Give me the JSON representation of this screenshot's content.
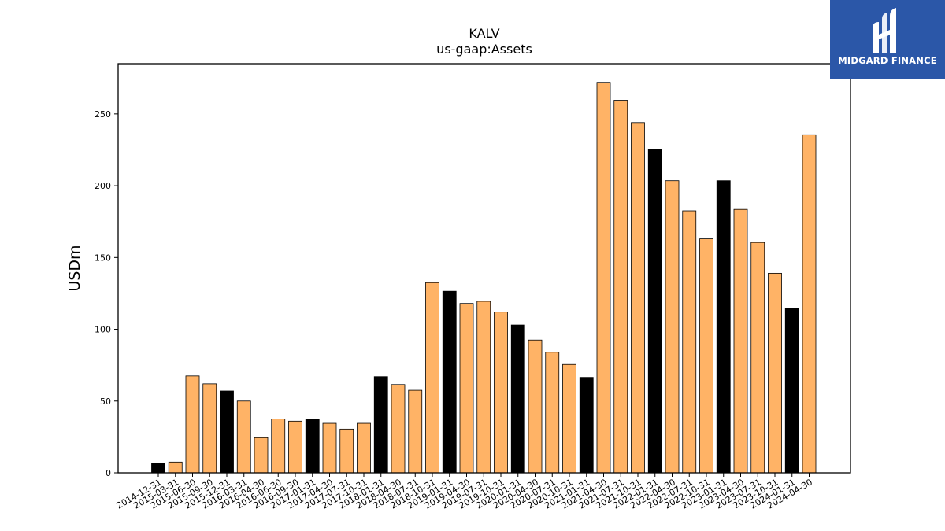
{
  "brand": {
    "name": "MIDGARD FINANCE",
    "background": "#2b57a8",
    "icon": "midgard-logo-icon"
  },
  "chart_data": {
    "type": "bar",
    "title": "KALV",
    "subtitle": "us-gaap:Assets",
    "xlabel": "",
    "ylabel": "USDm",
    "ylim": [
      0,
      285
    ],
    "yticks": [
      0,
      50,
      100,
      150,
      200,
      250
    ],
    "grid": false,
    "colors": {
      "quarter": "#ffb366",
      "fiscal_year_end": "#000000",
      "edge": "#000000"
    },
    "categories": [
      "2014-12-31",
      "2015-03-31",
      "2015-06-30",
      "2015-09-30",
      "2015-12-31",
      "2016-03-31",
      "2016-04-30",
      "2016-06-30",
      "2016-09-30",
      "2017-01-31",
      "2017-04-30",
      "2017-07-31",
      "2017-10-31",
      "2018-01-31",
      "2018-04-30",
      "2018-07-31",
      "2018-10-31",
      "2019-01-31",
      "2019-04-30",
      "2019-07-31",
      "2019-10-31",
      "2020-01-31",
      "2020-04-30",
      "2020-07-31",
      "2020-10-31",
      "2021-01-31",
      "2021-04-30",
      "2021-07-31",
      "2021-10-31",
      "2022-01-31",
      "2022-04-30",
      "2022-07-31",
      "2022-10-31",
      "2023-01-31",
      "2023-04-30",
      "2023-07-31",
      "2023-10-31",
      "2024-01-31",
      "2024-04-30"
    ],
    "values": [
      6.5,
      7.5,
      67.5,
      62,
      57,
      50,
      24.5,
      37.5,
      36,
      37.5,
      34.5,
      30.5,
      34.5,
      67,
      61.5,
      57.5,
      132.5,
      126.5,
      118,
      119.5,
      112,
      103,
      92.5,
      84,
      75.5,
      66.5,
      272,
      259.5,
      244,
      225.5,
      203.5,
      182.5,
      163,
      203.5,
      183.5,
      160.5,
      139,
      114.5,
      235.5
    ],
    "fiscal_year_end": [
      true,
      false,
      false,
      false,
      true,
      false,
      false,
      false,
      false,
      true,
      false,
      false,
      false,
      true,
      false,
      false,
      false,
      true,
      false,
      false,
      false,
      true,
      false,
      false,
      false,
      true,
      false,
      false,
      false,
      true,
      false,
      false,
      false,
      true,
      false,
      false,
      false,
      true,
      false
    ]
  }
}
